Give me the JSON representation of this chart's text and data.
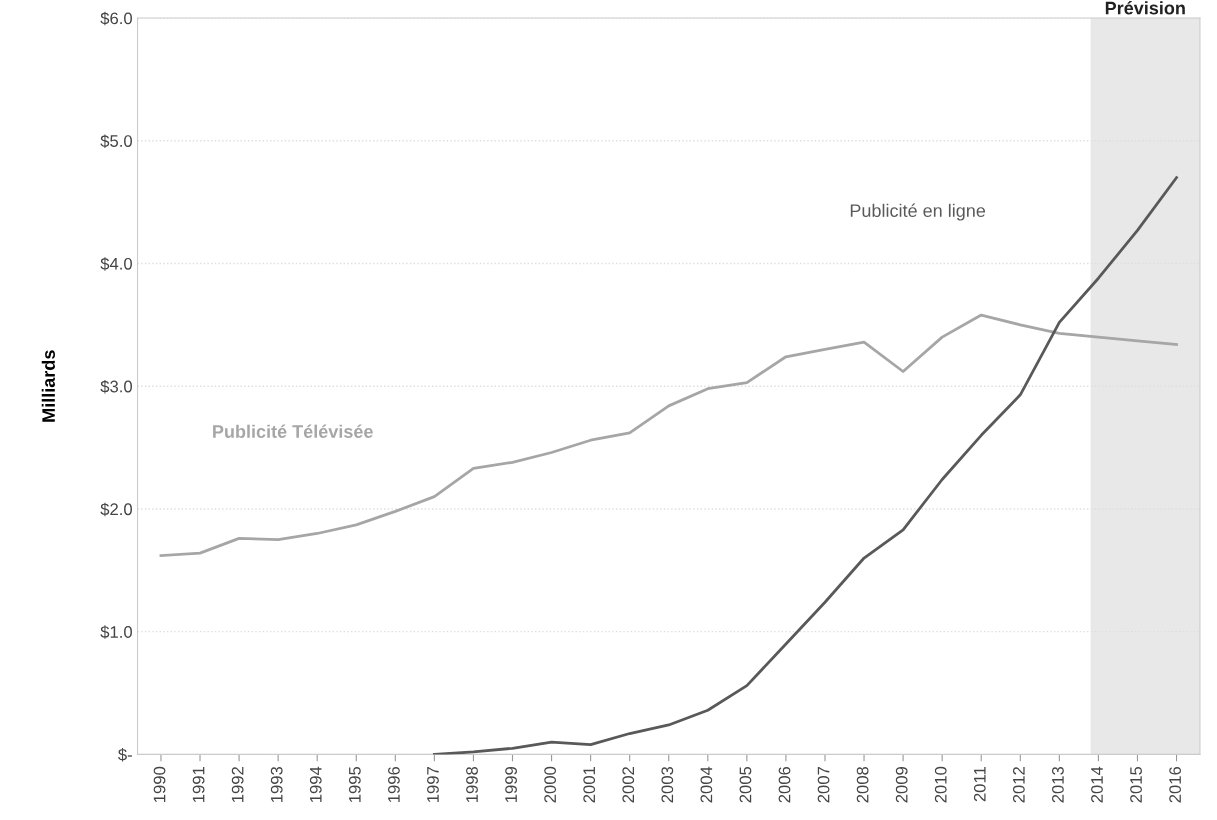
{
  "chart_data": {
    "type": "line",
    "ylabel": "Milliards",
    "x": [
      1990,
      1991,
      1992,
      1993,
      1994,
      1995,
      1996,
      1997,
      1998,
      1999,
      2000,
      2001,
      2002,
      2003,
      2004,
      2005,
      2006,
      2007,
      2008,
      2009,
      2010,
      2011,
      2012,
      2013,
      2014,
      2015,
      2016
    ],
    "series": [
      {
        "name": "Publicité Télévisée",
        "color": "#a6a6a6",
        "values": [
          1.62,
          1.64,
          1.76,
          1.75,
          1.8,
          1.87,
          1.98,
          2.1,
          2.33,
          2.38,
          2.46,
          2.56,
          2.62,
          2.84,
          2.98,
          3.03,
          3.24,
          3.3,
          3.36,
          3.12,
          3.4,
          3.58,
          3.5,
          3.43,
          3.4,
          3.37,
          3.34
        ]
      },
      {
        "name": "Publicité en ligne",
        "color": "#595959",
        "values": [
          null,
          null,
          null,
          null,
          null,
          null,
          null,
          0.0,
          0.02,
          0.05,
          0.1,
          0.08,
          0.17,
          0.24,
          0.36,
          0.56,
          0.9,
          1.24,
          1.6,
          1.83,
          2.24,
          2.6,
          2.93,
          3.52,
          3.88,
          4.27,
          4.7
        ]
      }
    ],
    "xlim": [
      1989.4,
      2016.6
    ],
    "xticks": [
      1990,
      1991,
      1992,
      1993,
      1994,
      1995,
      1996,
      1997,
      1998,
      1999,
      2000,
      2001,
      2002,
      2003,
      2004,
      2005,
      2006,
      2007,
      2008,
      2009,
      2010,
      2011,
      2012,
      2013,
      2014,
      2015,
      2016
    ],
    "ylim": [
      0,
      6
    ],
    "yticks": [
      {
        "value": 0,
        "label": "$-"
      },
      {
        "value": 1,
        "label": "$1.0"
      },
      {
        "value": 2,
        "label": "$2.0"
      },
      {
        "value": 3,
        "label": "$3.0"
      },
      {
        "value": 4,
        "label": "$4.0"
      },
      {
        "value": 5,
        "label": "$5.0"
      },
      {
        "value": 6,
        "label": "$6.0"
      }
    ],
    "bands": [
      {
        "axis": "x",
        "from": 2013.8,
        "to": 2016.6,
        "label": "Prévision",
        "color": "#e8e8e8"
      }
    ],
    "grid": "y",
    "legend": false,
    "marker": "none",
    "line_style": "solid"
  }
}
